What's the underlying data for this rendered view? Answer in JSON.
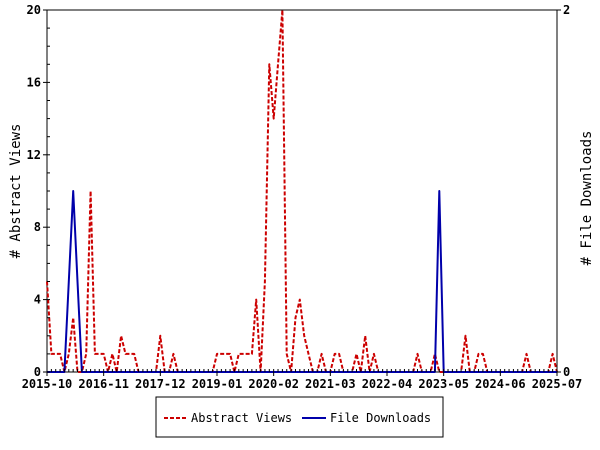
{
  "chart_data": {
    "type": "line",
    "title": "",
    "ylabel": "# Abstract Views",
    "y2label": "# File Downloads",
    "ylim": [
      0,
      20
    ],
    "y2lim": [
      0,
      2
    ],
    "yticks": [
      "0",
      "4",
      "8",
      "12",
      "16",
      "20"
    ],
    "y2ticks": [
      "0",
      "2"
    ],
    "xlim": [
      "2015-10",
      "2025-07"
    ],
    "xticks": [
      "2015-10",
      "2016-11",
      "2017-12",
      "2019-01",
      "2020-02",
      "2021-03",
      "2022-04",
      "2023-05",
      "2024-06",
      "2025-07"
    ],
    "legend_position": "bottom",
    "grid": false,
    "colors": {
      "views": "#cc0000",
      "downloads": "#0000aa"
    },
    "series": [
      {
        "name": "Abstract Views",
        "axis": "left",
        "style": "dashed",
        "points": [
          [
            "2015-10",
            5
          ],
          [
            "2015-11",
            1
          ],
          [
            "2015-12",
            1
          ],
          [
            "2016-01",
            1
          ],
          [
            "2016-02",
            0
          ],
          [
            "2016-03",
            1
          ],
          [
            "2016-04",
            3
          ],
          [
            "2016-05",
            0
          ],
          [
            "2016-06",
            0
          ],
          [
            "2016-07",
            1
          ],
          [
            "2016-08",
            10
          ],
          [
            "2016-09",
            1
          ],
          [
            "2016-10",
            1
          ],
          [
            "2016-11",
            1
          ],
          [
            "2016-12",
            0
          ],
          [
            "2017-01",
            1
          ],
          [
            "2017-02",
            0
          ],
          [
            "2017-03",
            2
          ],
          [
            "2017-04",
            1
          ],
          [
            "2017-05",
            1
          ],
          [
            "2017-06",
            1
          ],
          [
            "2017-07",
            0
          ],
          [
            "2017-08",
            0
          ],
          [
            "2017-09",
            0
          ],
          [
            "2017-10",
            0
          ],
          [
            "2017-11",
            0
          ],
          [
            "2017-12",
            2
          ],
          [
            "2018-01",
            0
          ],
          [
            "2018-02",
            0
          ],
          [
            "2018-03",
            1
          ],
          [
            "2018-04",
            0
          ],
          [
            "2018-05",
            0
          ],
          [
            "2018-06",
            0
          ],
          [
            "2018-07",
            0
          ],
          [
            "2018-08",
            0
          ],
          [
            "2018-09",
            0
          ],
          [
            "2018-10",
            0
          ],
          [
            "2018-11",
            0
          ],
          [
            "2018-12",
            0
          ],
          [
            "2019-01",
            1
          ],
          [
            "2019-02",
            1
          ],
          [
            "2019-03",
            1
          ],
          [
            "2019-04",
            1
          ],
          [
            "2019-05",
            0
          ],
          [
            "2019-06",
            1
          ],
          [
            "2019-07",
            1
          ],
          [
            "2019-08",
            1
          ],
          [
            "2019-09",
            1
          ],
          [
            "2019-10",
            4
          ],
          [
            "2019-11",
            0
          ],
          [
            "2019-12",
            5
          ],
          [
            "2020-01",
            17
          ],
          [
            "2020-02",
            14
          ],
          [
            "2020-03",
            17
          ],
          [
            "2020-04",
            20
          ],
          [
            "2020-05",
            1
          ],
          [
            "2020-06",
            0
          ],
          [
            "2020-07",
            3
          ],
          [
            "2020-08",
            4
          ],
          [
            "2020-09",
            2
          ],
          [
            "2020-10",
            1
          ],
          [
            "2020-11",
            0
          ],
          [
            "2020-12",
            0
          ],
          [
            "2021-01",
            1
          ],
          [
            "2021-02",
            0
          ],
          [
            "2021-03",
            0
          ],
          [
            "2021-04",
            1
          ],
          [
            "2021-05",
            1
          ],
          [
            "2021-06",
            0
          ],
          [
            "2021-07",
            0
          ],
          [
            "2021-08",
            0
          ],
          [
            "2021-09",
            1
          ],
          [
            "2021-10",
            0
          ],
          [
            "2021-11",
            2
          ],
          [
            "2021-12",
            0
          ],
          [
            "2022-01",
            1
          ],
          [
            "2022-02",
            0
          ],
          [
            "2022-03",
            0
          ],
          [
            "2022-04",
            0
          ],
          [
            "2022-05",
            0
          ],
          [
            "2022-06",
            0
          ],
          [
            "2022-07",
            0
          ],
          [
            "2022-08",
            0
          ],
          [
            "2022-09",
            0
          ],
          [
            "2022-10",
            0
          ],
          [
            "2022-11",
            1
          ],
          [
            "2022-12",
            0
          ],
          [
            "2023-01",
            0
          ],
          [
            "2023-02",
            0
          ],
          [
            "2023-03",
            1
          ],
          [
            "2023-04",
            0
          ],
          [
            "2023-05",
            0
          ],
          [
            "2023-06",
            0
          ],
          [
            "2023-07",
            0
          ],
          [
            "2023-08",
            0
          ],
          [
            "2023-09",
            0
          ],
          [
            "2023-10",
            2
          ],
          [
            "2023-11",
            0
          ],
          [
            "2023-12",
            0
          ],
          [
            "2024-01",
            1
          ],
          [
            "2024-02",
            1
          ],
          [
            "2024-03",
            0
          ],
          [
            "2024-04",
            0
          ],
          [
            "2024-05",
            0
          ],
          [
            "2024-06",
            0
          ],
          [
            "2024-07",
            0
          ],
          [
            "2024-08",
            0
          ],
          [
            "2024-09",
            0
          ],
          [
            "2024-10",
            0
          ],
          [
            "2024-11",
            0
          ],
          [
            "2024-12",
            1
          ],
          [
            "2025-01",
            0
          ],
          [
            "2025-02",
            0
          ],
          [
            "2025-03",
            0
          ],
          [
            "2025-04",
            0
          ],
          [
            "2025-05",
            0
          ],
          [
            "2025-06",
            1
          ],
          [
            "2025-07",
            0
          ]
        ]
      },
      {
        "name": "File Downloads",
        "axis": "right",
        "style": "solid",
        "points": [
          [
            "2015-10",
            0
          ],
          [
            "2016-02",
            0
          ],
          [
            "2016-03",
            0.5
          ],
          [
            "2016-04",
            1
          ],
          [
            "2016-05",
            0.5
          ],
          [
            "2016-06",
            0
          ],
          [
            "2023-03",
            0
          ],
          [
            "2023-04",
            1
          ],
          [
            "2023-05",
            0
          ],
          [
            "2025-07",
            0
          ]
        ]
      }
    ]
  }
}
